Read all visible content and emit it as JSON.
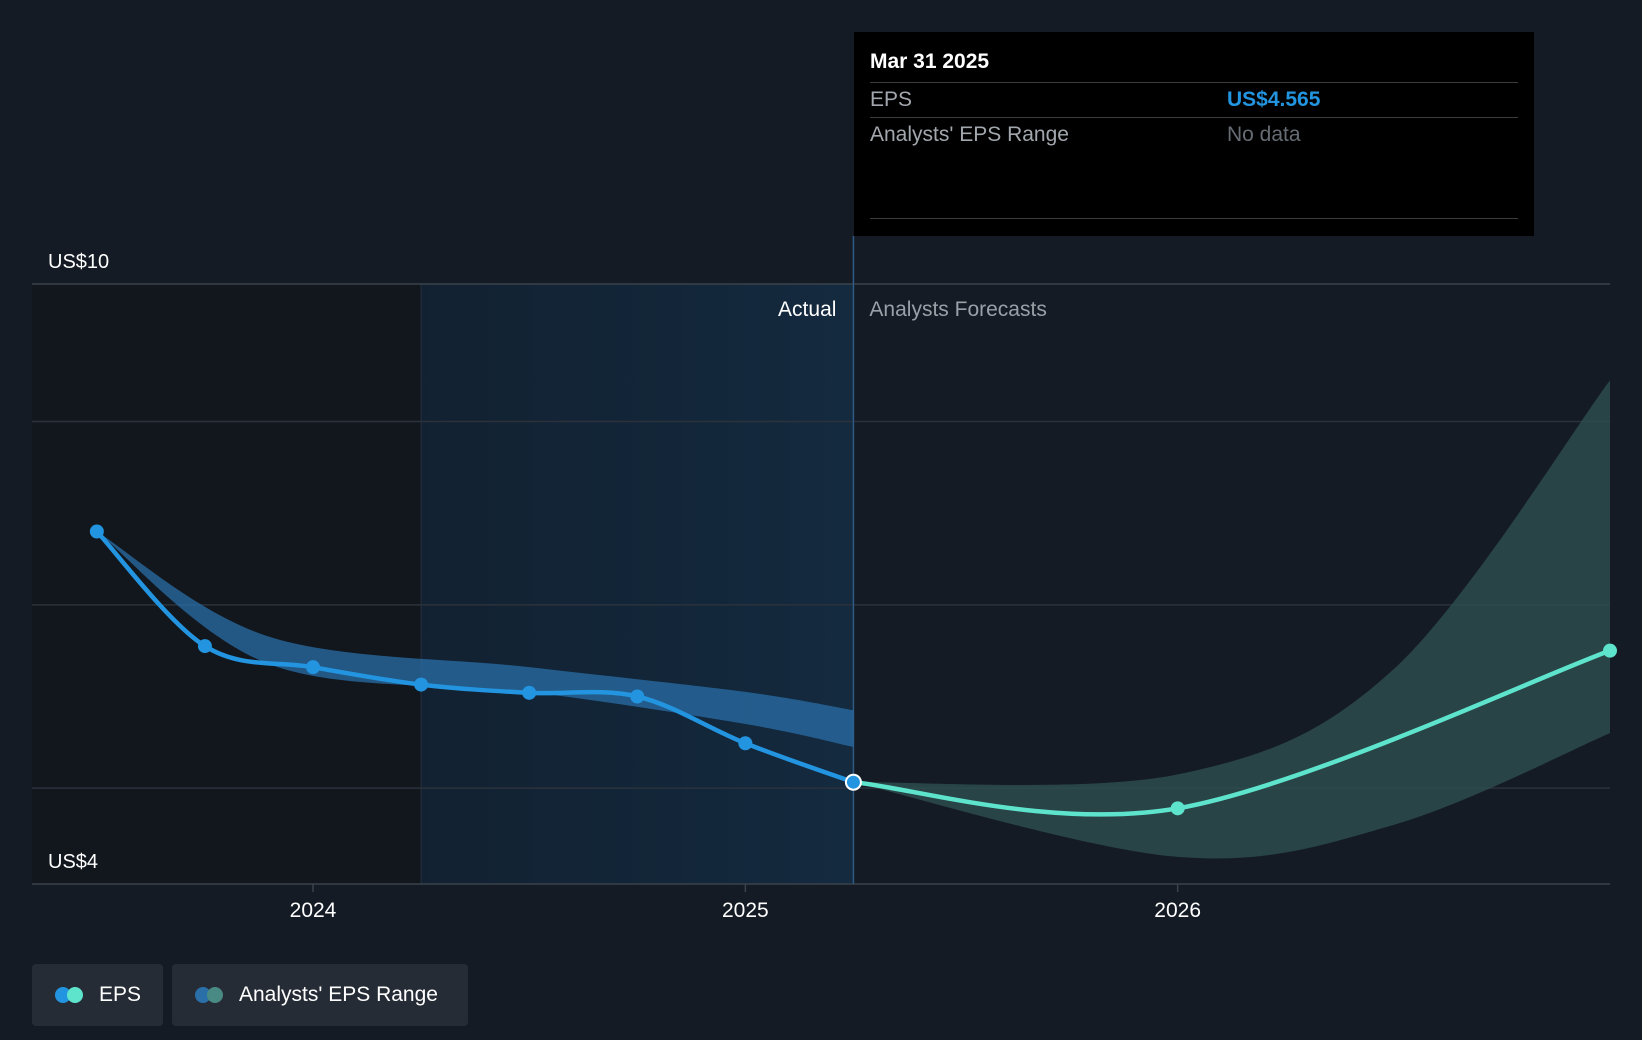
{
  "chart_data": {
    "type": "line",
    "y_axis_labels": [
      "US$10",
      "US$4"
    ],
    "x_ticks": [
      {
        "label": "2024",
        "x": 2024.0
      },
      {
        "label": "2025",
        "x": 2025.0
      },
      {
        "label": "2026",
        "x": 2026.0
      }
    ],
    "ylim": [
      4,
      10
    ],
    "xlim": [
      2023.35,
      2027.0
    ],
    "region_labels": {
      "actual": "Actual",
      "forecast": "Analysts Forecasts"
    },
    "divider_x": 2025.25,
    "highlight_start_x": 2024.25,
    "series": [
      {
        "name": "EPS",
        "color": "#2394df",
        "points": [
          [
            2023.5,
            7.3
          ],
          [
            2023.75,
            6.05
          ],
          [
            2024.0,
            5.82
          ],
          [
            2024.25,
            5.63
          ],
          [
            2024.5,
            5.54
          ],
          [
            2024.75,
            5.5
          ],
          [
            2025.0,
            4.99
          ],
          [
            2025.25,
            4.565
          ]
        ]
      },
      {
        "name": "EPS Forecast",
        "color": "#5ee4cc",
        "points": [
          [
            2025.25,
            4.565
          ],
          [
            2026.0,
            4.28
          ],
          [
            2027.0,
            6.0
          ]
        ]
      }
    ],
    "ranges": [
      {
        "name": "Analysts' EPS Range (past)",
        "color": "#2a6fa8",
        "upper": [
          [
            2023.5,
            7.3
          ],
          [
            2023.9,
            6.15
          ],
          [
            2024.5,
            5.82
          ],
          [
            2025.0,
            5.55
          ],
          [
            2025.25,
            5.35
          ]
        ],
        "lower": [
          [
            2023.5,
            7.3
          ],
          [
            2023.9,
            5.85
          ],
          [
            2024.5,
            5.55
          ],
          [
            2025.0,
            5.2
          ],
          [
            2025.25,
            4.95
          ]
        ]
      },
      {
        "name": "Analysts' EPS Range (forecast)",
        "color": "#2d4f4f",
        "upper": [
          [
            2025.25,
            4.565
          ],
          [
            2026.0,
            4.65
          ],
          [
            2026.5,
            5.8
          ],
          [
            2027.0,
            8.95
          ]
        ],
        "lower": [
          [
            2025.25,
            4.565
          ],
          [
            2026.0,
            3.75
          ],
          [
            2026.5,
            4.1
          ],
          [
            2027.0,
            5.1
          ]
        ]
      }
    ],
    "highlighted_point": [
      2025.25,
      4.565
    ]
  },
  "tooltip": {
    "date": "Mar 31 2025",
    "eps_label": "EPS",
    "eps_value": "US$4.565",
    "range_label": "Analysts' EPS Range",
    "range_value": "No data"
  },
  "legend": {
    "eps_label": "EPS",
    "range_label": "Analysts' EPS Range",
    "eps_colors": [
      "#2394df",
      "#5ee4cc"
    ],
    "range_colors": [
      "#2a6fa8",
      "#4a8a84"
    ]
  }
}
